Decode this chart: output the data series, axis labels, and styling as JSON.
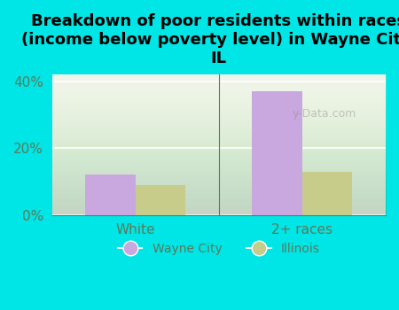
{
  "title": "Breakdown of poor residents within races\n(income below poverty level) in Wayne City,\nIL",
  "categories": [
    "White",
    "2+ races"
  ],
  "wayne_city_values": [
    12.0,
    37.0
  ],
  "illinois_values": [
    9.0,
    13.0
  ],
  "wayne_city_color": "#c9a8e0",
  "illinois_color": "#c8cc8a",
  "background_color": "#00e5e5",
  "plot_bg_color": "#f0f4e8",
  "ylim": [
    0,
    42
  ],
  "yticks": [
    0,
    20,
    40
  ],
  "ytick_labels": [
    "0%",
    "20%",
    "40%"
  ],
  "bar_width": 0.3,
  "legend_labels": [
    "Wayne City",
    "Illinois"
  ],
  "title_fontsize": 13,
  "tick_color": "#5a7a5a",
  "watermark": "y-Data.com"
}
